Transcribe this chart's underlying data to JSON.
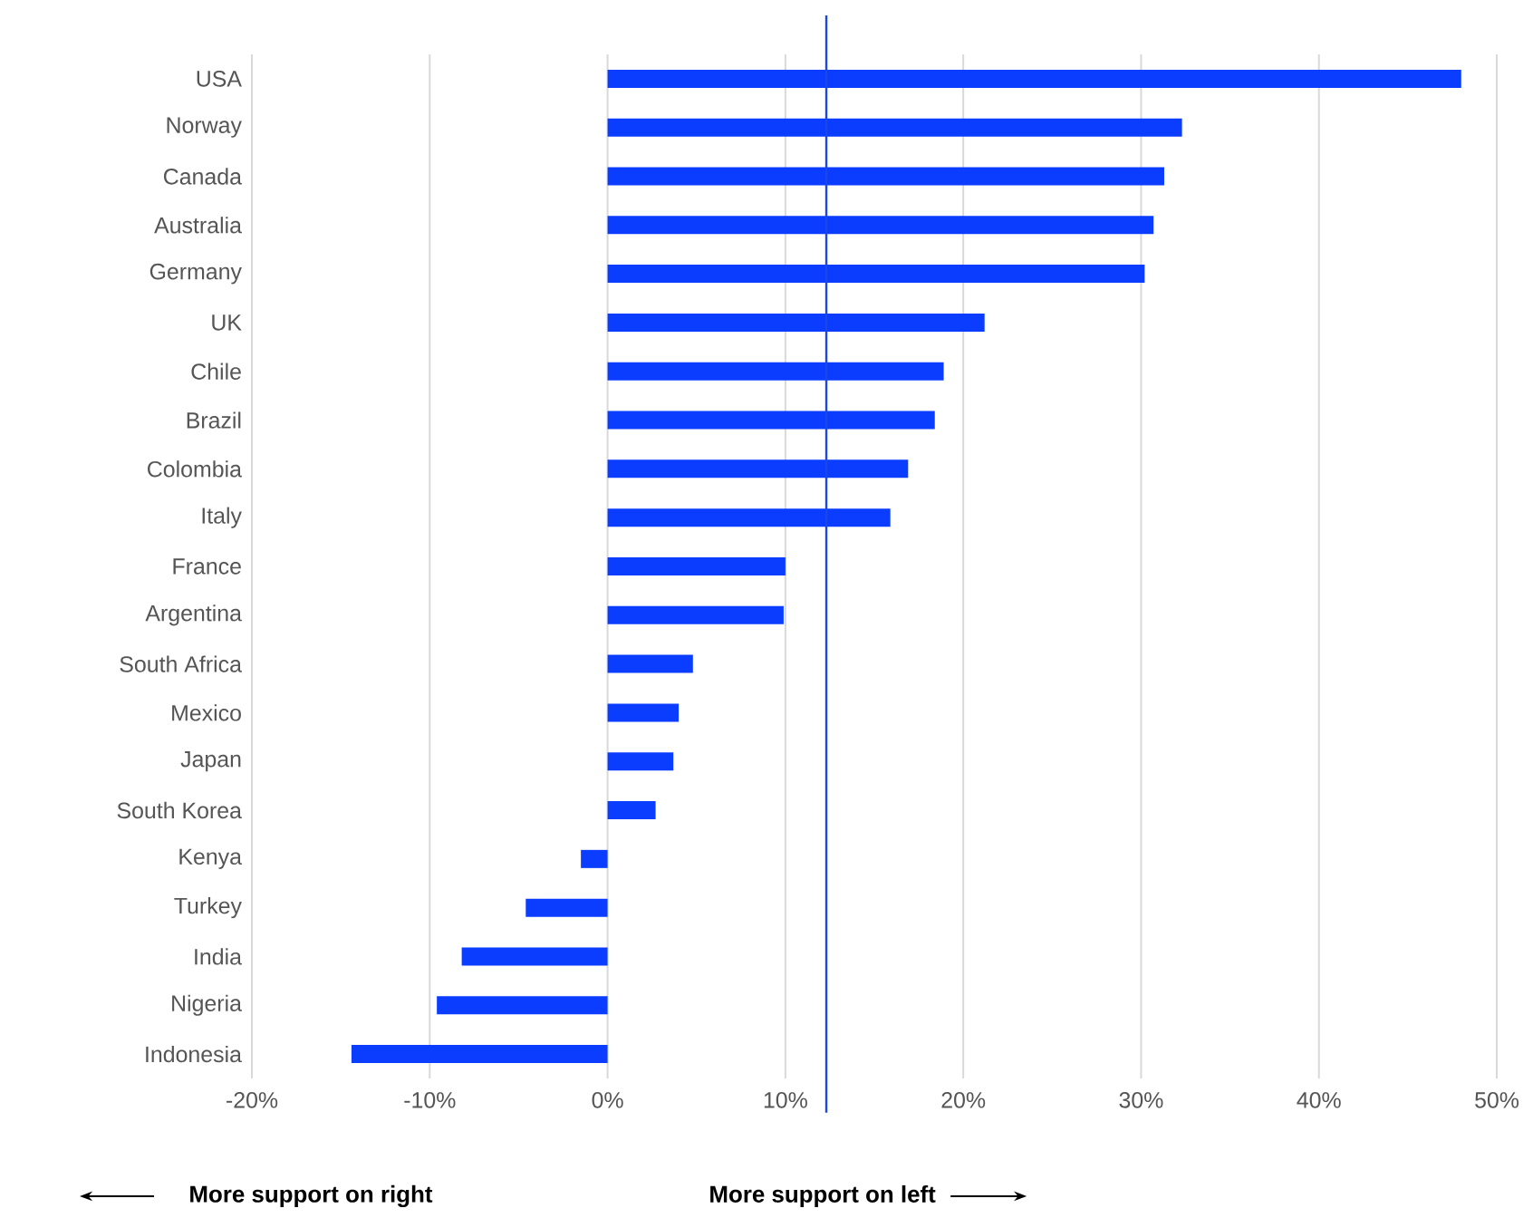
{
  "chart_data": {
    "type": "bar",
    "orientation": "horizontal",
    "categories": [
      "USA",
      "Norway",
      "Canada",
      "Australia",
      "Germany",
      "UK",
      "Chile",
      "Brazil",
      "Colombia",
      "Italy",
      "France",
      "Argentina",
      "South Africa",
      "Mexico",
      "Japan",
      "South Korea",
      "Kenya",
      "Turkey",
      "India",
      "Nigeria",
      "Indonesia"
    ],
    "values": [
      48.0,
      32.3,
      31.3,
      30.7,
      30.2,
      21.2,
      18.9,
      18.4,
      16.9,
      15.9,
      10.0,
      9.9,
      4.8,
      4.0,
      3.7,
      2.7,
      -1.5,
      -4.6,
      -8.2,
      -9.6,
      -14.4
    ],
    "color": "#0a3dff",
    "xlim": [
      -20,
      50
    ],
    "xticks": [
      {
        "value": -20,
        "label": "-20%"
      },
      {
        "value": -10,
        "label": "-10%"
      },
      {
        "value": 0,
        "label": "0%"
      },
      {
        "value": 10,
        "label": "10%"
      },
      {
        "value": 20,
        "label": "20%"
      },
      {
        "value": 30,
        "label": "30%"
      },
      {
        "value": 40,
        "label": "40%"
      },
      {
        "value": 50,
        "label": "50%"
      }
    ],
    "grid": "x",
    "ref_lines": [
      {
        "axis": "x",
        "value": 12.3,
        "color": "#1a47e6"
      }
    ],
    "annotations": [
      "More support on right",
      "More support on left"
    ]
  }
}
